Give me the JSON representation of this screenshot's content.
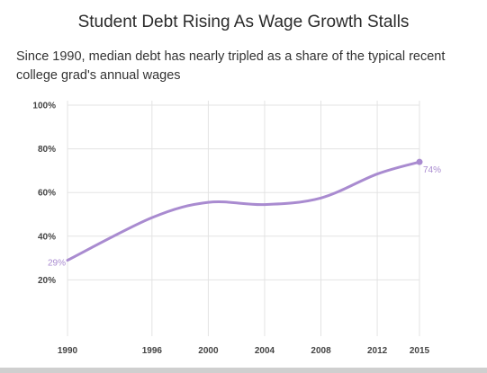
{
  "title": "Student Debt Rising As Wage Growth Stalls",
  "subtitle": "Since 1990, median debt has nearly tripled as a share of the typical recent college grad's annual wages",
  "chart_data": {
    "type": "line",
    "title": "Student Debt Rising As Wage Growth Stalls",
    "subtitle": "Since 1990, median debt has nearly tripled as a share of the typical recent college grad's annual wages",
    "xlabel": "",
    "ylabel": "",
    "x_ticks": [
      "1990",
      "1996",
      "2000",
      "2004",
      "2008",
      "2012",
      "2015"
    ],
    "y_ticks": [
      "20%",
      "40%",
      "60%",
      "80%",
      "100%"
    ],
    "ylim": [
      0,
      100
    ],
    "xlim": [
      1990,
      2015
    ],
    "grid": true,
    "series": [
      {
        "color": "#a98bd0",
        "x": [
          1990,
          1996,
          2000,
          2004,
          2008,
          2012,
          2015
        ],
        "values": [
          29,
          48.5,
          55.5,
          54.5,
          57.5,
          68.5,
          74
        ]
      }
    ],
    "data_labels": [
      {
        "x": 1990,
        "y": 29,
        "text": "29%"
      },
      {
        "x": 2015,
        "y": 74,
        "text": "74%"
      }
    ]
  }
}
